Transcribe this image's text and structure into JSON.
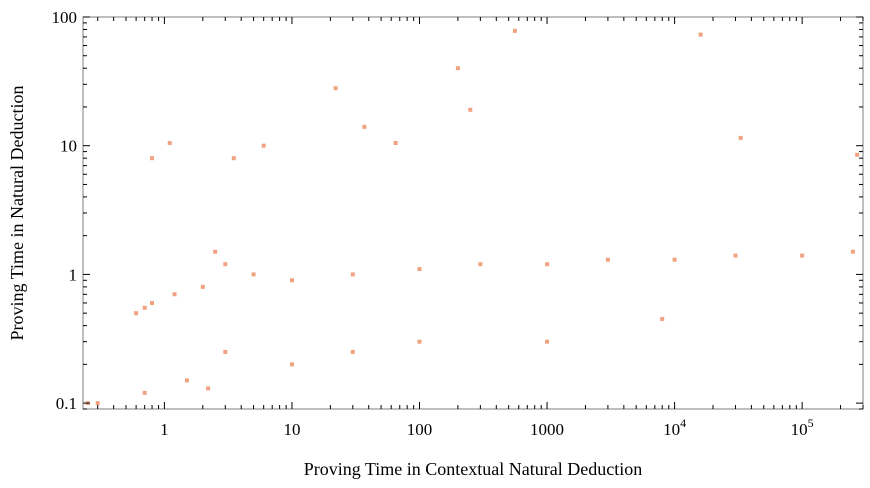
{
  "chart_data": {
    "type": "scatter",
    "title": "",
    "xlabel": "Proving Time in Contextual Natural Deduction",
    "ylabel": "Proving Time in Natural Deduction",
    "x_scale": "log",
    "y_scale": "log",
    "xlim": [
      0.23,
      300000
    ],
    "ylim": [
      0.09,
      100
    ],
    "x_ticks": [
      {
        "value": 1,
        "label": "1"
      },
      {
        "value": 10,
        "label": "10"
      },
      {
        "value": 100,
        "label": "100"
      },
      {
        "value": 1000,
        "label": "1000"
      },
      {
        "value": 10000,
        "label": "10",
        "exp": "4"
      },
      {
        "value": 100000,
        "label": "10",
        "exp": "5"
      }
    ],
    "y_ticks": [
      {
        "value": 0.1,
        "label": "0.1"
      },
      {
        "value": 1,
        "label": "1"
      },
      {
        "value": 10,
        "label": "10"
      },
      {
        "value": 100,
        "label": "100"
      }
    ],
    "grid": false,
    "legend": "none",
    "point_color": "#e8642c",
    "series": [
      {
        "points": [
          [
            0.6,
            0.5
          ],
          [
            0.7,
            0.55
          ],
          [
            0.8,
            0.6
          ],
          [
            1.2,
            0.7
          ],
          [
            2,
            0.8
          ],
          [
            2.5,
            1.5
          ],
          [
            3,
            1.2
          ],
          [
            5,
            1.0
          ],
          [
            10,
            0.9
          ],
          [
            30,
            1.0
          ],
          [
            100,
            1.1
          ],
          [
            300,
            1.2
          ],
          [
            1000,
            1.2
          ],
          [
            3000,
            1.3
          ],
          [
            10000,
            1.3
          ],
          [
            30000,
            1.4
          ],
          [
            100000,
            1.4
          ],
          [
            250000,
            1.5
          ],
          [
            0.25,
            0.1
          ],
          [
            0.3,
            0.1
          ],
          [
            0.7,
            0.12
          ],
          [
            1.5,
            0.15
          ],
          [
            2.2,
            0.13
          ],
          [
            3,
            0.25
          ],
          [
            10,
            0.2
          ],
          [
            30,
            0.25
          ],
          [
            100,
            0.3
          ],
          [
            1000,
            0.3
          ],
          [
            8000,
            0.45
          ],
          [
            0.8,
            8
          ],
          [
            1.1,
            10.5
          ],
          [
            22,
            28
          ],
          [
            37,
            14
          ],
          [
            200,
            40
          ],
          [
            250,
            19
          ],
          [
            560,
            78
          ],
          [
            16000,
            73
          ],
          [
            33000,
            11.5
          ],
          [
            270000,
            8.5
          ],
          [
            65,
            10.5
          ],
          [
            6,
            10
          ],
          [
            3.5,
            8
          ]
        ]
      }
    ]
  }
}
